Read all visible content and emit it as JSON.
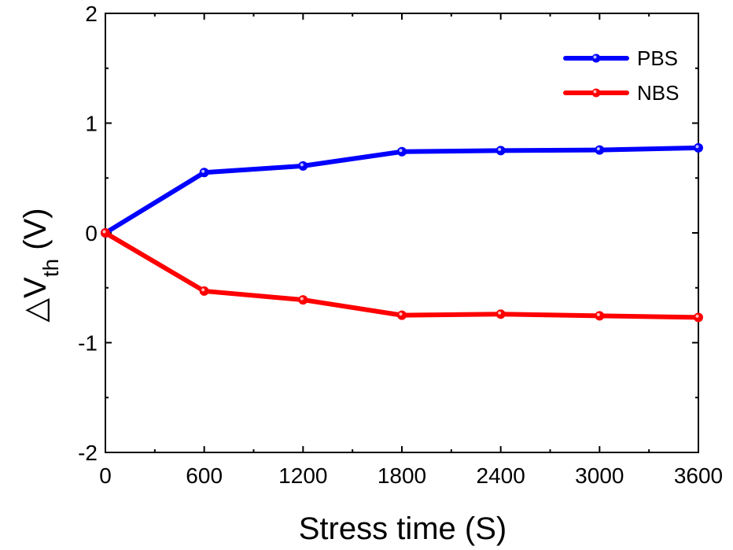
{
  "chart_data": {
    "type": "line",
    "xlabel": "Stress time (S)",
    "ylabel": {
      "prefix": "△V",
      "subscript": "th",
      "suffix": " (V)"
    },
    "x": [
      0,
      600,
      1200,
      1800,
      2400,
      3000,
      3600
    ],
    "xlim": [
      0,
      3600
    ],
    "ylim": [
      -2,
      2
    ],
    "xticks": [
      "0",
      "600",
      "1200",
      "1800",
      "2400",
      "3000",
      "3600"
    ],
    "yticks": [
      "-2",
      "-1",
      "0",
      "1",
      "2"
    ],
    "grid": false,
    "legend_position": "top-right",
    "series": [
      {
        "name": "PBS",
        "color": "#0000ff",
        "values": [
          0,
          0.55,
          0.61,
          0.74,
          0.75,
          0.755,
          0.775
        ]
      },
      {
        "name": "NBS",
        "color": "#ff0000",
        "values": [
          0,
          -0.53,
          -0.61,
          -0.75,
          -0.74,
          -0.755,
          -0.77
        ]
      }
    ]
  }
}
